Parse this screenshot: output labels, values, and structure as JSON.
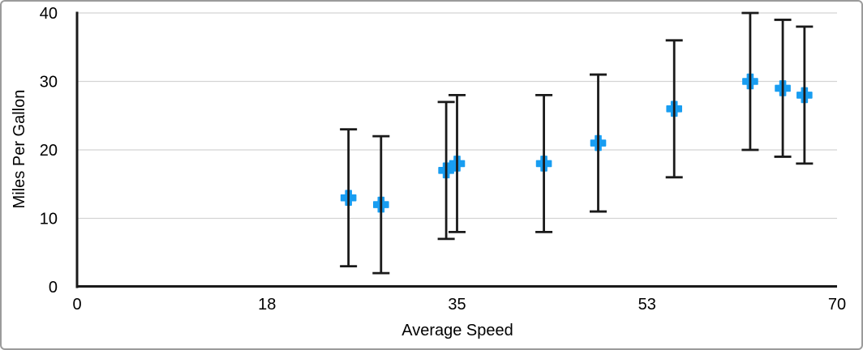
{
  "chart_data": {
    "type": "scatter",
    "title": "",
    "xlabel": "Average Speed",
    "ylabel": "Miles Per Gallon",
    "xlim": [
      0,
      70
    ],
    "ylim": [
      0,
      40
    ],
    "x_ticks": [
      {
        "value": 0,
        "label": "0"
      },
      {
        "value": 17.5,
        "label": "18"
      },
      {
        "value": 35,
        "label": "35"
      },
      {
        "value": 52.5,
        "label": "53"
      },
      {
        "value": 70,
        "label": "70"
      }
    ],
    "y_ticks": [
      {
        "value": 0,
        "label": "0"
      },
      {
        "value": 10,
        "label": "10"
      },
      {
        "value": 20,
        "label": "20"
      },
      {
        "value": 30,
        "label": "30"
      },
      {
        "value": 40,
        "label": "40"
      }
    ],
    "grid": "horizontal-lines-only",
    "legend": "none",
    "series": [
      {
        "name": "Miles Per Gallon",
        "marker": "plus",
        "error_y": 10,
        "points": [
          {
            "x": 25,
            "y": 13
          },
          {
            "x": 28,
            "y": 12
          },
          {
            "x": 34,
            "y": 17
          },
          {
            "x": 35,
            "y": 18
          },
          {
            "x": 43,
            "y": 18
          },
          {
            "x": 48,
            "y": 21
          },
          {
            "x": 55,
            "y": 26
          },
          {
            "x": 62,
            "y": 30
          },
          {
            "x": 65,
            "y": 29
          },
          {
            "x": 67,
            "y": 28
          }
        ]
      }
    ],
    "colors": {
      "marker": "#189df1",
      "error_bar": "#1a1a1a",
      "axis": "#1a1a1a",
      "gridline": "#d4d4d4",
      "text": "#000000",
      "background": "#ffffff",
      "frame_border": "#9b9b9b"
    }
  }
}
